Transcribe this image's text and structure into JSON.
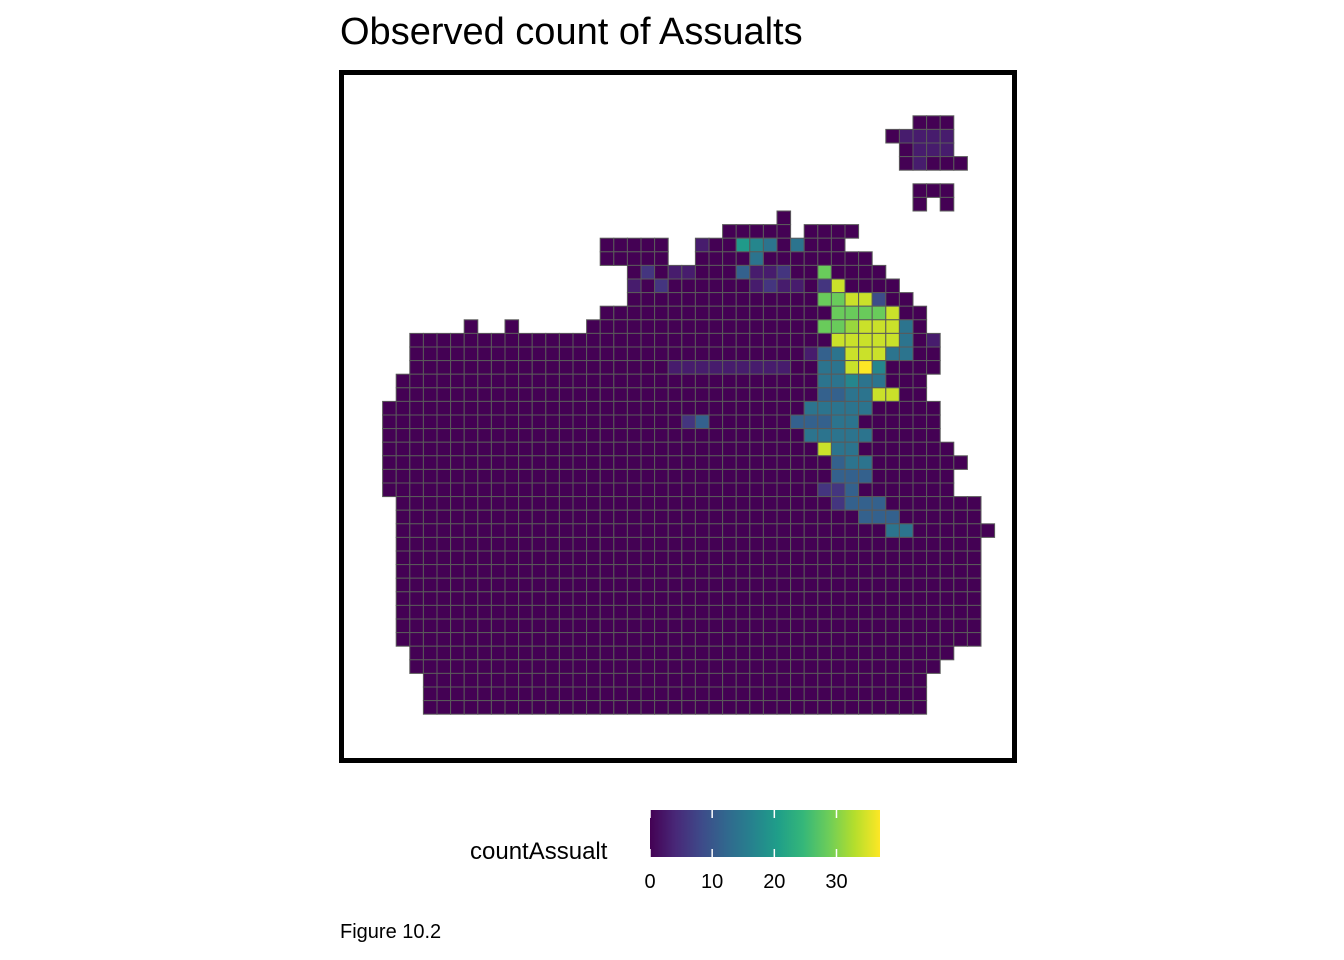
{
  "chart_data": {
    "type": "heatmap",
    "title": "Observed count of Assualts",
    "caption": "Figure 10.2",
    "legend": {
      "title": "countAssualt",
      "ticks": [
        0,
        10,
        20,
        30
      ],
      "range": [
        0,
        37
      ],
      "palette": [
        "#440154",
        "#482878",
        "#3E4A89",
        "#31688E",
        "#26828E",
        "#1F9E89",
        "#35B779",
        "#6DCD59",
        "#B4DE2C",
        "#FDE725"
      ]
    },
    "grid_rows": [
      "...........................................",
      "..........................................",
      "..........................................",
      "........................................AAA",
      "......................................ABBBB",
      ".......................................ABBB",
      ".......................................ABAAA",
      "..........................................",
      "........................................AAA",
      "........................................A.A",
      "..............................A",
      "..........................AAAAA.AAAA",
      ".................AAAAA..BAAHGFAFAAA",
      ".................AAAAA..AAAAFAAAAAAAA",
      "...................ACABBAAAEBBCAAKAAAA",
      "...................BACAAAAAABCBBACMAAAA",
      "...................AAAAAAAAAAAAAAKKMMDAA",
      ".................AAAAAAAAAAAAAAAAAKKKKMAA",
      ".......A..A.....AAAAAAAAAAAAAAAAAKKLMMMFA",
      "...AAAAAAAAAAAAAAAAAAAAAAAAAAAAAAAMMMMMFAB",
      "...AAAAAAAAAAAAAAAAAAAAAAAAAAAAABEFMMMFFAA",
      "...AAAAAAAAAAAAAAAAAAABBBBBBBBBAAFFMNGAAAA",
      "..AAAAAAAAAAAAAAAAAAAAAAAAAAAAAAAFFGFFAAA",
      "..AAAAAAAAAAAAAAAAAAAAAAAAAAAAAAAEEFFMMAA",
      ".AAAAAAAAAAAAAAAAAAAAAAAAAAAAAAAFFFFFAAAAA",
      ".AAAAAAAAAAAAAAAAAAAAAACEAAAAAAEEEFFAAAAAA",
      ".AAAAAAAAAAAAAAAAAAAAAAAAAAAAAAAFFFFFAAAAA",
      ".AAAAAAAAAAAAAAAAAAAAAAAAAAAAAAAAMFFAAAAAAA",
      ".AAAAAAAAAAAAAAAAAAAAAAAAAAAAAAAAAEFFAAAAAAA",
      ".AAAAAAAAAAAAAAAAAAAAAAAAAAAAAAAAAEEEAAAAAA",
      ".AAAAAAAAAAAAAAAAAAAAAAAAAAAAAAAACCEAAAAAAA",
      "..AAAAAAAAAAAAAAAAAAAAAAAAAAAAAAAACEEEAAAAAAA",
      "..AAAAAAAAAAAAAAAAAAAAAAAAAAAAAAAAAAEEEAAAAAA",
      "..AAAAAAAAAAAAAAAAAAAAAAAAAAAAAAAAAAAAFFAAAAAA",
      "..AAAAAAAAAAAAAAAAAAAAAAAAAAAAAAAAAAAAAAAAAAA",
      "..AAAAAAAAAAAAAAAAAAAAAAAAAAAAAAAAAAAAAAAAAAA",
      "..AAAAAAAAAAAAAAAAAAAAAAAAAAAAAAAAAAAAAAAAAAA",
      "..AAAAAAAAAAAAAAAAAAAAAAAAAAAAAAAAAAAAAAAAAAA",
      "..AAAAAAAAAAAAAAAAAAAAAAAAAAAAAAAAAAAAAAAAAAA",
      "..AAAAAAAAAAAAAAAAAAAAAAAAAAAAAAAAAAAAAAAAAAA",
      "..AAAAAAAAAAAAAAAAAAAAAAAAAAAAAAAAAAAAAAAAAAA",
      "..AAAAAAAAAAAAAAAAAAAAAAAAAAAAAAAAAAAAAAAAAAA",
      "...AAAAAAAAAAAAAAAAAAAAAAAAAAAAAAAAAAAAAAAA",
      "...AAAAAAAAAAAAAAAAAAAAAAAAAAAAAAAAAAAAAAA",
      "....AAAAAAAAAAAAAAAAAAAAAAAAAAAAAAAAAAAAA",
      "....AAAAAAAAAAAAAAAAAAAAAAAAAAAAAAAAAAAAA",
      "....AAAAAAAAAAAAAAAAAAAAAAAAAAAAAAAAAAAAA"
    ]
  }
}
